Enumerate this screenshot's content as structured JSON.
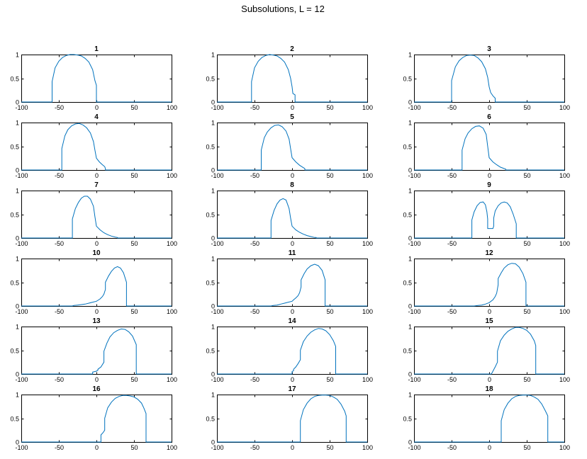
{
  "figure": {
    "title": "Subsolutions, L = 12",
    "line_color": "#0072bd"
  },
  "chart_data": [
    {
      "type": "line",
      "title": "1",
      "xlim": [
        -100,
        100
      ],
      "ylim": [
        0,
        1
      ],
      "xticks": [
        -100,
        -50,
        0,
        50,
        100
      ],
      "yticks": [
        0,
        0.5,
        1
      ],
      "grid": false,
      "series": [
        {
          "x": [
            -100,
            -59,
            -59,
            -55,
            -50,
            -45,
            -40,
            -35,
            -30,
            -25,
            -20,
            -15,
            -10,
            -5,
            -2,
            0,
            0,
            100
          ],
          "y": [
            0,
            0,
            0.43,
            0.72,
            0.86,
            0.94,
            0.98,
            1.0,
            1.0,
            0.99,
            0.97,
            0.92,
            0.84,
            0.68,
            0.45,
            0.35,
            0,
            0
          ]
        }
      ]
    },
    {
      "type": "line",
      "title": "2",
      "xlim": [
        -100,
        100
      ],
      "ylim": [
        0,
        1
      ],
      "xticks": [
        -100,
        -50,
        0,
        50,
        100
      ],
      "yticks": [
        0,
        0.5,
        1
      ],
      "grid": false,
      "series": [
        {
          "x": [
            -100,
            -54,
            -54,
            -50,
            -45,
            -40,
            -35,
            -30,
            -25,
            -20,
            -15,
            -10,
            -5,
            -2,
            0,
            1,
            4,
            4,
            100
          ],
          "y": [
            0,
            0,
            0.43,
            0.72,
            0.86,
            0.94,
            0.98,
            1.0,
            0.99,
            0.97,
            0.92,
            0.84,
            0.68,
            0.5,
            0.32,
            0.18,
            0.15,
            0,
            0
          ]
        }
      ]
    },
    {
      "type": "line",
      "title": "3",
      "xlim": [
        -100,
        100
      ],
      "ylim": [
        0,
        1
      ],
      "xticks": [
        -100,
        -50,
        0,
        50,
        100
      ],
      "yticks": [
        0,
        0.5,
        1
      ],
      "grid": false,
      "series": [
        {
          "x": [
            -100,
            -50,
            -50,
            -45,
            -40,
            -35,
            -30,
            -25,
            -20,
            -15,
            -10,
            -5,
            -2,
            0,
            2,
            5,
            8,
            8,
            100
          ],
          "y": [
            0,
            0,
            0.45,
            0.74,
            0.87,
            0.94,
            0.98,
            0.99,
            0.98,
            0.93,
            0.85,
            0.7,
            0.52,
            0.32,
            0.2,
            0.13,
            0.08,
            0,
            0
          ]
        }
      ]
    },
    {
      "type": "line",
      "title": "4",
      "xlim": [
        -100,
        100
      ],
      "ylim": [
        0,
        1
      ],
      "xticks": [
        -100,
        -50,
        0,
        50,
        100
      ],
      "yticks": [
        0,
        0.5,
        1
      ],
      "grid": false,
      "series": [
        {
          "x": [
            -100,
            -46,
            -46,
            -42,
            -38,
            -33,
            -28,
            -23,
            -18,
            -13,
            -8,
            -4,
            -2,
            0,
            4,
            8,
            11,
            12,
            12,
            100
          ],
          "y": [
            0,
            0,
            0.45,
            0.72,
            0.85,
            0.93,
            0.97,
            0.98,
            0.95,
            0.89,
            0.78,
            0.6,
            0.42,
            0.25,
            0.17,
            0.11,
            0.07,
            0.03,
            0,
            0
          ]
        }
      ]
    },
    {
      "type": "line",
      "title": "5",
      "xlim": [
        -100,
        100
      ],
      "ylim": [
        0,
        1
      ],
      "xticks": [
        -100,
        -50,
        0,
        50,
        100
      ],
      "yticks": [
        0,
        0.5,
        1
      ],
      "grid": false,
      "series": [
        {
          "x": [
            -100,
            -41,
            -41,
            -37,
            -33,
            -28,
            -23,
            -18,
            -13,
            -8,
            -4,
            -2,
            0,
            5,
            10,
            15,
            17,
            17,
            100
          ],
          "y": [
            0,
            0,
            0.42,
            0.68,
            0.8,
            0.89,
            0.94,
            0.95,
            0.91,
            0.82,
            0.65,
            0.45,
            0.26,
            0.17,
            0.1,
            0.05,
            0.03,
            0,
            0
          ]
        }
      ]
    },
    {
      "type": "line",
      "title": "6",
      "xlim": [
        -100,
        100
      ],
      "ylim": [
        0,
        1
      ],
      "xticks": [
        -100,
        -50,
        0,
        50,
        100
      ],
      "yticks": [
        0,
        0.5,
        1
      ],
      "grid": false,
      "series": [
        {
          "x": [
            -100,
            -36,
            -36,
            -32,
            -28,
            -23,
            -18,
            -13,
            -8,
            -4,
            -2,
            0,
            5,
            10,
            15,
            20,
            22,
            22,
            100
          ],
          "y": [
            0,
            0,
            0.42,
            0.66,
            0.78,
            0.87,
            0.92,
            0.93,
            0.88,
            0.75,
            0.5,
            0.26,
            0.17,
            0.11,
            0.06,
            0.03,
            0.02,
            0,
            0
          ]
        }
      ]
    },
    {
      "type": "line",
      "title": "7",
      "xlim": [
        -100,
        100
      ],
      "ylim": [
        0,
        1
      ],
      "xticks": [
        -100,
        -50,
        0,
        50,
        100
      ],
      "yticks": [
        0,
        0.5,
        1
      ],
      "grid": false,
      "series": [
        {
          "x": [
            -100,
            -32,
            -32,
            -28,
            -24,
            -20,
            -16,
            -12,
            -8,
            -4,
            -2,
            0,
            5,
            10,
            15,
            20,
            25,
            28,
            28,
            100
          ],
          "y": [
            0,
            0,
            0.4,
            0.62,
            0.75,
            0.84,
            0.88,
            0.88,
            0.82,
            0.67,
            0.45,
            0.25,
            0.17,
            0.11,
            0.07,
            0.04,
            0.02,
            0.01,
            0,
            0
          ]
        }
      ]
    },
    {
      "type": "line",
      "title": "8",
      "xlim": [
        -100,
        100
      ],
      "ylim": [
        0,
        1
      ],
      "xticks": [
        -100,
        -50,
        0,
        50,
        100
      ],
      "yticks": [
        0,
        0.5,
        1
      ],
      "grid": false,
      "series": [
        {
          "x": [
            -100,
            -28,
            -28,
            -24,
            -20,
            -16,
            -12,
            -8,
            -4,
            -2,
            0,
            5,
            10,
            15,
            20,
            25,
            30,
            32,
            32,
            100
          ],
          "y": [
            0,
            0,
            0.37,
            0.58,
            0.72,
            0.8,
            0.83,
            0.8,
            0.62,
            0.42,
            0.25,
            0.17,
            0.12,
            0.08,
            0.05,
            0.03,
            0.01,
            0.01,
            0,
            0
          ]
        }
      ]
    },
    {
      "type": "line",
      "title": "9",
      "xlim": [
        -100,
        100
      ],
      "ylim": [
        0,
        1
      ],
      "xticks": [
        -100,
        -50,
        0,
        50,
        100
      ],
      "yticks": [
        0,
        0.5,
        1
      ],
      "grid": false,
      "series": [
        {
          "x": [
            -100,
            -23,
            -23,
            -20,
            -16,
            -12,
            -8,
            -5,
            -3,
            -2,
            -2,
            5,
            6,
            6,
            8,
            12,
            16,
            20,
            24,
            28,
            32,
            36,
            36,
            100
          ],
          "y": [
            0,
            0,
            0.38,
            0.55,
            0.68,
            0.75,
            0.76,
            0.7,
            0.55,
            0.4,
            0.2,
            0.2,
            0.25,
            0.42,
            0.57,
            0.68,
            0.74,
            0.76,
            0.74,
            0.66,
            0.5,
            0.3,
            0,
            0
          ]
        }
      ]
    },
    {
      "type": "line",
      "title": "10",
      "xlim": [
        -100,
        100
      ],
      "ylim": [
        0,
        1
      ],
      "xticks": [
        -100,
        -50,
        0,
        50,
        100
      ],
      "yticks": [
        0,
        0.5,
        1
      ],
      "grid": false,
      "series": [
        {
          "x": [
            -100,
            -32,
            -30,
            -25,
            -20,
            -15,
            -10,
            -5,
            0,
            2,
            5,
            8,
            10,
            12,
            12,
            16,
            20,
            24,
            28,
            32,
            36,
            40,
            40,
            100
          ],
          "y": [
            0,
            0,
            0.01,
            0.02,
            0.03,
            0.04,
            0.06,
            0.08,
            0.1,
            0.12,
            0.15,
            0.2,
            0.25,
            0.35,
            0.5,
            0.63,
            0.73,
            0.8,
            0.83,
            0.8,
            0.7,
            0.5,
            0,
            0
          ]
        }
      ]
    },
    {
      "type": "line",
      "title": "11",
      "xlim": [
        -100,
        100
      ],
      "ylim": [
        0,
        1
      ],
      "xticks": [
        -100,
        -50,
        0,
        50,
        100
      ],
      "yticks": [
        0,
        0.5,
        1
      ],
      "grid": false,
      "series": [
        {
          "x": [
            -100,
            -28,
            -25,
            -20,
            -15,
            -10,
            -5,
            0,
            2,
            5,
            8,
            10,
            12,
            12,
            16,
            20,
            25,
            30,
            35,
            40,
            44,
            44,
            100
          ],
          "y": [
            0,
            0,
            0.01,
            0.02,
            0.04,
            0.06,
            0.08,
            0.1,
            0.13,
            0.17,
            0.22,
            0.28,
            0.4,
            0.55,
            0.68,
            0.78,
            0.85,
            0.88,
            0.85,
            0.75,
            0.55,
            0,
            0
          ]
        }
      ]
    },
    {
      "type": "line",
      "title": "12",
      "xlim": [
        -100,
        100
      ],
      "ylim": [
        0,
        1
      ],
      "xticks": [
        -100,
        -50,
        0,
        50,
        100
      ],
      "yticks": [
        0,
        0.5,
        1
      ],
      "grid": false,
      "series": [
        {
          "x": [
            -100,
            -20,
            -15,
            -10,
            -5,
            0,
            5,
            8,
            10,
            12,
            12,
            16,
            20,
            25,
            30,
            35,
            40,
            45,
            49,
            49,
            100
          ],
          "y": [
            0,
            0,
            0.01,
            0.02,
            0.04,
            0.07,
            0.13,
            0.2,
            0.27,
            0.45,
            0.58,
            0.7,
            0.8,
            0.87,
            0.9,
            0.89,
            0.82,
            0.68,
            0.5,
            0,
            0
          ]
        }
      ]
    },
    {
      "type": "line",
      "title": "13",
      "xlim": [
        -100,
        100
      ],
      "ylim": [
        0,
        1
      ],
      "xticks": [
        -100,
        -50,
        0,
        50,
        100
      ],
      "yticks": [
        0,
        0.5,
        1
      ],
      "grid": false,
      "series": [
        {
          "x": [
            -100,
            -5,
            -5,
            0,
            2,
            2,
            6,
            10,
            10,
            14,
            18,
            23,
            28,
            33,
            38,
            43,
            48,
            53,
            53,
            100
          ],
          "y": [
            0,
            0,
            0.04,
            0.06,
            0.08,
            0.1,
            0.15,
            0.25,
            0.48,
            0.65,
            0.78,
            0.87,
            0.92,
            0.95,
            0.94,
            0.89,
            0.8,
            0.62,
            0,
            0
          ]
        }
      ]
    },
    {
      "type": "line",
      "title": "14",
      "xlim": [
        -100,
        100
      ],
      "ylim": [
        0,
        1
      ],
      "xticks": [
        -100,
        -50,
        0,
        50,
        100
      ],
      "yticks": [
        0,
        0.5,
        1
      ],
      "grid": false,
      "series": [
        {
          "x": [
            -100,
            0,
            0,
            2,
            2,
            5,
            8,
            11,
            11,
            15,
            20,
            25,
            30,
            35,
            40,
            45,
            50,
            55,
            58,
            58,
            100
          ],
          "y": [
            0,
            0,
            0.05,
            0.07,
            0.1,
            0.15,
            0.22,
            0.3,
            0.5,
            0.68,
            0.8,
            0.88,
            0.93,
            0.96,
            0.95,
            0.91,
            0.83,
            0.7,
            0.58,
            0,
            0
          ]
        }
      ]
    },
    {
      "type": "line",
      "title": "15",
      "xlim": [
        -100,
        100
      ],
      "ylim": [
        0,
        1
      ],
      "xticks": [
        -100,
        -50,
        0,
        50,
        100
      ],
      "yticks": [
        0,
        0.5,
        1
      ],
      "grid": false,
      "series": [
        {
          "x": [
            -100,
            3,
            5,
            8,
            11,
            11,
            15,
            20,
            25,
            30,
            35,
            40,
            45,
            50,
            55,
            60,
            62,
            62,
            100
          ],
          "y": [
            0,
            0,
            0.06,
            0.15,
            0.25,
            0.48,
            0.7,
            0.82,
            0.9,
            0.95,
            0.98,
            0.98,
            0.96,
            0.92,
            0.84,
            0.7,
            0.6,
            0,
            0
          ]
        }
      ]
    },
    {
      "type": "line",
      "title": "16",
      "xlim": [
        -100,
        100
      ],
      "ylim": [
        0,
        1
      ],
      "xticks": [
        -100,
        -50,
        0,
        50,
        100
      ],
      "yticks": [
        0,
        0.5,
        1
      ],
      "grid": false,
      "series": [
        {
          "x": [
            -100,
            6,
            6,
            9,
            11,
            11,
            15,
            20,
            25,
            30,
            35,
            40,
            45,
            50,
            55,
            60,
            63,
            66,
            66,
            100
          ],
          "y": [
            0,
            0,
            0.15,
            0.2,
            0.25,
            0.5,
            0.72,
            0.84,
            0.92,
            0.96,
            0.98,
            0.98,
            0.97,
            0.95,
            0.9,
            0.82,
            0.72,
            0.6,
            0,
            0
          ]
        }
      ]
    },
    {
      "type": "line",
      "title": "17",
      "xlim": [
        -100,
        100
      ],
      "ylim": [
        0,
        1
      ],
      "xticks": [
        -100,
        -50,
        0,
        50,
        100
      ],
      "yticks": [
        0,
        0.5,
        1
      ],
      "grid": false,
      "series": [
        {
          "x": [
            -100,
            11,
            11,
            15,
            20,
            25,
            30,
            35,
            40,
            45,
            50,
            55,
            60,
            65,
            70,
            72,
            72,
            100
          ],
          "y": [
            0,
            0,
            0.45,
            0.68,
            0.82,
            0.91,
            0.96,
            0.98,
            0.99,
            0.99,
            0.98,
            0.95,
            0.9,
            0.8,
            0.65,
            0.55,
            0,
            0
          ]
        }
      ]
    },
    {
      "type": "line",
      "title": "18",
      "xlim": [
        -100,
        100
      ],
      "ylim": [
        0,
        1
      ],
      "xticks": [
        -100,
        -50,
        0,
        50,
        100
      ],
      "yticks": [
        0,
        0.5,
        1
      ],
      "grid": false,
      "series": [
        {
          "x": [
            -100,
            16,
            16,
            20,
            25,
            30,
            35,
            40,
            45,
            50,
            55,
            60,
            65,
            70,
            75,
            78,
            78,
            100
          ],
          "y": [
            0,
            0,
            0.45,
            0.68,
            0.82,
            0.91,
            0.96,
            0.98,
            0.99,
            0.99,
            0.98,
            0.95,
            0.9,
            0.8,
            0.65,
            0.55,
            0,
            0
          ]
        }
      ]
    }
  ]
}
